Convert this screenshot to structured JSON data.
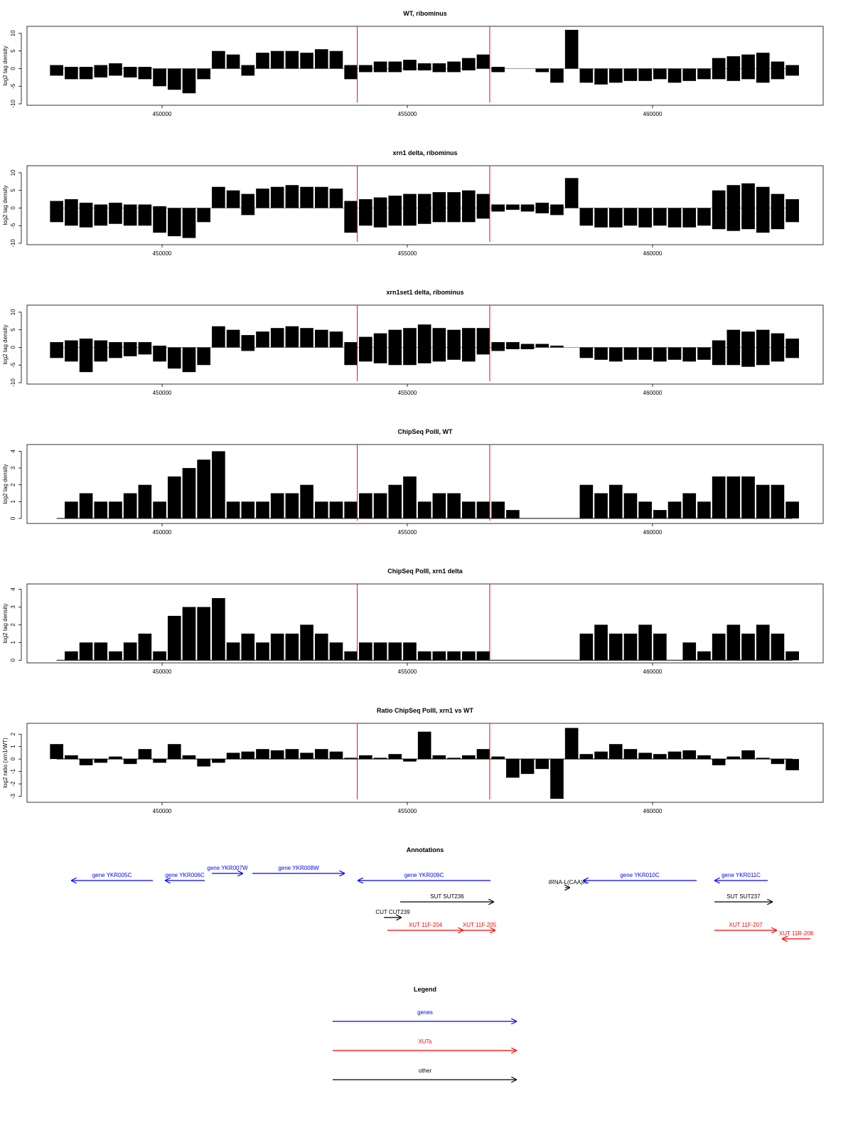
{
  "chart_data": [
    {
      "type": "bar",
      "title": "WT, ribominus",
      "ylabel": "log2 tag density",
      "xlim": [
        447246,
        463478
      ],
      "ylim": [
        -10.4,
        12
      ],
      "xticks": [
        450000,
        455000,
        460000
      ],
      "yticks": [
        -10,
        -5,
        0,
        5,
        10
      ],
      "vlines": [
        453980,
        456680
      ],
      "vline_color": "#ff0000",
      "x": [
        447850,
        448150,
        448450,
        448750,
        449050,
        449350,
        449650,
        449950,
        450250,
        450550,
        450850,
        451150,
        451450,
        451750,
        452050,
        452350,
        452650,
        452950,
        453250,
        453550,
        453850,
        454150,
        454450,
        454750,
        455050,
        455350,
        455650,
        455950,
        456250,
        456550,
        456850,
        457150,
        457450,
        457750,
        458050,
        458350,
        458650,
        458950,
        459250,
        459550,
        459850,
        460150,
        460450,
        460750,
        461050,
        461350,
        461650,
        461950,
        462250,
        462550,
        462850
      ],
      "series": [
        {
          "color": "#000000",
          "values": [
            1,
            0.5,
            0.5,
            1,
            1.5,
            0.5,
            0.5,
            0,
            0,
            0,
            0,
            5,
            4,
            1,
            4.5,
            5,
            5,
            4.5,
            5.5,
            5,
            1,
            1,
            2,
            2,
            2.5,
            1.5,
            1.5,
            2,
            3,
            4,
            0.5,
            0,
            0,
            0,
            0,
            11,
            0,
            0,
            0,
            0,
            0,
            0,
            0,
            0,
            0,
            3,
            3.5,
            4,
            4.5,
            2,
            1
          ]
        },
        {
          "color": "#000000",
          "values": [
            -2,
            -3,
            -3,
            -2.5,
            -2,
            -2.5,
            -3,
            -5,
            -6,
            -7,
            -3,
            0,
            0,
            -2,
            0,
            0,
            0,
            0,
            0,
            0,
            -3,
            -1,
            -1,
            -1,
            -0.5,
            -0.5,
            -1,
            -1,
            -0.5,
            0,
            -1,
            0,
            0,
            -1,
            -4,
            0,
            -4,
            -4.5,
            -4,
            -3.5,
            -3.5,
            -3,
            -4,
            -3.5,
            -3,
            -3,
            -3.5,
            -3,
            -4,
            -3,
            -2
          ]
        }
      ]
    },
    {
      "type": "bar",
      "title": "xrn1 delta, ribominus",
      "ylabel": "log2 tag density",
      "xlim": [
        447246,
        463478
      ],
      "ylim": [
        -10.4,
        12
      ],
      "xticks": [
        450000,
        455000,
        460000
      ],
      "yticks": [
        -10,
        -5,
        0,
        5,
        10
      ],
      "vlines": [
        453980,
        456680
      ],
      "vline_color": "#ff0000",
      "x": [
        447850,
        448150,
        448450,
        448750,
        449050,
        449350,
        449650,
        449950,
        450250,
        450550,
        450850,
        451150,
        451450,
        451750,
        452050,
        452350,
        452650,
        452950,
        453250,
        453550,
        453850,
        454150,
        454450,
        454750,
        455050,
        455350,
        455650,
        455950,
        456250,
        456550,
        456850,
        457150,
        457450,
        457750,
        458050,
        458350,
        458650,
        458950,
        459250,
        459550,
        459850,
        460150,
        460450,
        460750,
        461050,
        461350,
        461650,
        461950,
        462250,
        462550,
        462850
      ],
      "series": [
        {
          "color": "#000000",
          "values": [
            2,
            2.5,
            1.5,
            1,
            1.5,
            1,
            1,
            0.5,
            0,
            0,
            0,
            6,
            5,
            4,
            5.5,
            6,
            6.5,
            6,
            6,
            5.5,
            2,
            2.5,
            3,
            3.5,
            4,
            4,
            4.5,
            4.5,
            5,
            4,
            1,
            1,
            1,
            1.5,
            1,
            8.5,
            0,
            0,
            0,
            0,
            0,
            0,
            0,
            0,
            0,
            5,
            6.5,
            7,
            6,
            4,
            2.5
          ]
        },
        {
          "color": "#000000",
          "values": [
            -4,
            -5,
            -5.5,
            -5,
            -4.5,
            -5,
            -5,
            -7,
            -8,
            -8.5,
            -4,
            0,
            0,
            -2,
            0,
            0,
            0,
            0,
            0,
            0,
            -7,
            -5,
            -5.5,
            -5,
            -5,
            -4.5,
            -4,
            -4,
            -4,
            -3,
            -1,
            -0.5,
            -1,
            -1.5,
            -2,
            0,
            -5,
            -5.5,
            -5.5,
            -5,
            -5.5,
            -5,
            -5.5,
            -5.5,
            -5,
            -6,
            -6.5,
            -6,
            -7,
            -6,
            -4
          ]
        }
      ]
    },
    {
      "type": "bar",
      "title": "xrn1set1 delta, ribominus",
      "ylabel": "log2 tag density",
      "xlim": [
        447246,
        463478
      ],
      "ylim": [
        -10.4,
        12
      ],
      "xticks": [
        450000,
        455000,
        460000
      ],
      "yticks": [
        -10,
        -5,
        0,
        5,
        10
      ],
      "vlines": [
        453980,
        456680
      ],
      "vline_color": "#ff0000",
      "x": [
        447850,
        448150,
        448450,
        448750,
        449050,
        449350,
        449650,
        449950,
        450250,
        450550,
        450850,
        451150,
        451450,
        451750,
        452050,
        452350,
        452650,
        452950,
        453250,
        453550,
        453850,
        454150,
        454450,
        454750,
        455050,
        455350,
        455650,
        455950,
        456250,
        456550,
        456850,
        457150,
        457450,
        457750,
        458050,
        458350,
        458650,
        458950,
        459250,
        459550,
        459850,
        460150,
        460450,
        460750,
        461050,
        461350,
        461650,
        461950,
        462250,
        462550,
        462850
      ],
      "series": [
        {
          "color": "#000000",
          "values": [
            1.5,
            2,
            2.5,
            2,
            1.5,
            1.5,
            1.5,
            0.5,
            0,
            0,
            0,
            6,
            5,
            3.5,
            4.5,
            5.5,
            6,
            5.5,
            5,
            4.5,
            1.5,
            3,
            4,
            5,
            5.5,
            6.5,
            5.5,
            5,
            5.5,
            5.5,
            1.5,
            1.5,
            1,
            1,
            0.5,
            0,
            0,
            0,
            0,
            0,
            0,
            0,
            0,
            0,
            0,
            2,
            5,
            4.5,
            5,
            4,
            2.5
          ]
        },
        {
          "color": "#000000",
          "values": [
            -3,
            -4,
            -7,
            -4,
            -3,
            -2.5,
            -2,
            -4,
            -6,
            -7,
            -5,
            0,
            0,
            -1,
            0,
            0,
            0,
            0,
            0,
            0,
            -5,
            -4,
            -4.5,
            -5,
            -5,
            -4.5,
            -4,
            -3.5,
            -4,
            -2,
            -1,
            -0.5,
            -0.5,
            0,
            0,
            0,
            -3,
            -3.5,
            -4,
            -3.5,
            -3.5,
            -4,
            -3.5,
            -4,
            -3.5,
            -5,
            -5,
            -5.5,
            -5,
            -4,
            -3
          ]
        }
      ]
    },
    {
      "type": "bar",
      "title": "ChipSeq PolII, WT",
      "ylabel": "log2 tag density",
      "xlim": [
        447246,
        463478
      ],
      "ylim": [
        -0.3,
        4.4
      ],
      "xticks": [
        450000,
        455000,
        460000
      ],
      "yticks": [
        0,
        1,
        2,
        3,
        4
      ],
      "vlines": [
        453980,
        456680
      ],
      "vline_color": "#ff0000",
      "x": [
        447850,
        448150,
        448450,
        448750,
        449050,
        449350,
        449650,
        449950,
        450250,
        450550,
        450850,
        451150,
        451450,
        451750,
        452050,
        452350,
        452650,
        452950,
        453250,
        453550,
        453850,
        454150,
        454450,
        454750,
        455050,
        455350,
        455650,
        455950,
        456250,
        456550,
        456850,
        457150,
        457450,
        457750,
        458050,
        458350,
        458650,
        458950,
        459250,
        459550,
        459850,
        460150,
        460450,
        460750,
        461050,
        461350,
        461650,
        461950,
        462250,
        462550,
        462850
      ],
      "series": [
        {
          "color": "#000000",
          "values": [
            0,
            1,
            1.5,
            1,
            1,
            1.5,
            2,
            1,
            2.5,
            3,
            3.5,
            4,
            1,
            1,
            1,
            1.5,
            1.5,
            2,
            1,
            1,
            1,
            1.5,
            1.5,
            2,
            2.5,
            1,
            1.5,
            1.5,
            1,
            1,
            1,
            0.5,
            0,
            0,
            0,
            0,
            2,
            1.5,
            2,
            1.5,
            1,
            0.5,
            1,
            1.5,
            1,
            2.5,
            2.5,
            2.5,
            2,
            2,
            1
          ]
        }
      ]
    },
    {
      "type": "bar",
      "title": "ChipSeq PolII, xrn1 delta",
      "ylabel": "log2 tag density",
      "xlim": [
        447246,
        463478
      ],
      "ylim": [
        -0.15,
        4.3
      ],
      "xticks": [
        450000,
        455000,
        460000
      ],
      "yticks": [
        0,
        1,
        2,
        3,
        4
      ],
      "vlines": [
        453980,
        456680
      ],
      "vline_color": "#ff0000",
      "x": [
        447850,
        448150,
        448450,
        448750,
        449050,
        449350,
        449650,
        449950,
        450250,
        450550,
        450850,
        451150,
        451450,
        451750,
        452050,
        452350,
        452650,
        452950,
        453250,
        453550,
        453850,
        454150,
        454450,
        454750,
        455050,
        455350,
        455650,
        455950,
        456250,
        456550,
        456850,
        457150,
        457450,
        457750,
        458050,
        458350,
        458650,
        458950,
        459250,
        459550,
        459850,
        460150,
        460450,
        460750,
        461050,
        461350,
        461650,
        461950,
        462250,
        462550,
        462850
      ],
      "series": [
        {
          "color": "#000000",
          "values": [
            0,
            0.5,
            1,
            1,
            0.5,
            1,
            1.5,
            0.5,
            2.5,
            3,
            3,
            3.5,
            1,
            1.5,
            1,
            1.5,
            1.5,
            2,
            1.5,
            1,
            0.5,
            1,
            1,
            1,
            1,
            0.5,
            0.5,
            0.5,
            0.5,
            0.5,
            0,
            0,
            0,
            0,
            0,
            0,
            1.5,
            2,
            1.5,
            1.5,
            2,
            1.5,
            0,
            1,
            0.5,
            1.5,
            2,
            1.5,
            2,
            1.5,
            0.5
          ]
        }
      ]
    },
    {
      "type": "bar",
      "title": "Ratio ChipSeq PolII, xrn1 vs WT",
      "ylabel": "log2 ratio (xrn1/WT)",
      "xlim": [
        447246,
        463478
      ],
      "ylim": [
        -3.48,
        2.87
      ],
      "xticks": [
        450000,
        455000,
        460000
      ],
      "yticks": [
        -3,
        -2,
        -1,
        0,
        1,
        2
      ],
      "vlines": [
        453980,
        456680
      ],
      "vline_color": "#ff0000",
      "x": [
        447850,
        448150,
        448450,
        448750,
        449050,
        449350,
        449650,
        449950,
        450250,
        450550,
        450850,
        451150,
        451450,
        451750,
        452050,
        452350,
        452650,
        452950,
        453250,
        453550,
        453850,
        454150,
        454450,
        454750,
        455050,
        455350,
        455650,
        455950,
        456250,
        456550,
        456850,
        457150,
        457450,
        457750,
        458050,
        458350,
        458650,
        458950,
        459250,
        459550,
        459850,
        460150,
        460450,
        460750,
        461050,
        461350,
        461650,
        461950,
        462250,
        462550,
        462850
      ],
      "series": [
        {
          "color": "#000000",
          "values": [
            1.2,
            0.3,
            -0.5,
            -0.3,
            0.2,
            -0.4,
            0.8,
            -0.3,
            1.2,
            0.3,
            -0.6,
            -0.3,
            0.5,
            0.6,
            0.8,
            0.7,
            0.8,
            0.5,
            0.8,
            0.6,
            0.1,
            0.3,
            0.1,
            0.4,
            -0.2,
            2.2,
            0.3,
            0.1,
            0.3,
            0.8,
            0.2,
            -1.5,
            -1.2,
            -0.8,
            -3.2,
            2.5,
            0.4,
            0.6,
            1.2,
            0.8,
            0.5,
            0.4,
            0.6,
            0.7,
            0.3,
            -0.5,
            0.2,
            0.7,
            0.1,
            -0.4,
            -0.9
          ]
        }
      ]
    },
    {
      "type": "annotation",
      "title": "Annotations",
      "xlim": [
        447246,
        463478
      ],
      "features": [
        {
          "label": "gene YKR005C",
          "kind": "gene",
          "strand": "-",
          "start": 448145,
          "end": 449812,
          "color": "#0000ff"
        },
        {
          "label": "gene YKR006C",
          "kind": "gene",
          "strand": "-",
          "start": 450058,
          "end": 450870,
          "color": "#0000ff"
        },
        {
          "label": "gene YKR007W",
          "kind": "gene",
          "strand": "+",
          "start": 451014,
          "end": 451652,
          "color": "#0000ff"
        },
        {
          "label": "gene YKR008W",
          "kind": "gene",
          "strand": "+",
          "start": 451841,
          "end": 453725,
          "color": "#0000ff"
        },
        {
          "label": "gene YKR009C",
          "kind": "gene",
          "strand": "-",
          "start": 453986,
          "end": 456696,
          "color": "#0000ff"
        },
        {
          "label": "tRNA-L(CAA)K",
          "kind": "tRNA",
          "strand": "+",
          "start": 458217,
          "end": 458319,
          "color": "#000000"
        },
        {
          "label": "gene YKR010C",
          "kind": "gene",
          "strand": "-",
          "start": 458580,
          "end": 460899,
          "color": "#0000ff"
        },
        {
          "label": "gene YKR011C",
          "kind": "gene",
          "strand": "-",
          "start": 461261,
          "end": 462348,
          "color": "#0000ff"
        },
        {
          "label": "SUT SUT236",
          "kind": "SUT",
          "strand": "+",
          "start": 454855,
          "end": 456768,
          "color": "#000000"
        },
        {
          "label": "SUT SUT237",
          "kind": "SUT",
          "strand": "+",
          "start": 461261,
          "end": 462449,
          "color": "#000000"
        },
        {
          "label": "CUT CUT239",
          "kind": "CUT",
          "strand": "+",
          "start": 454522,
          "end": 454884,
          "color": "#000000"
        },
        {
          "label": "XUT 11F-204",
          "kind": "XUT",
          "strand": "+",
          "start": 454594,
          "end": 456145,
          "color": "#ff0000"
        },
        {
          "label": "XUT 11F-205",
          "kind": "XUT",
          "strand": "+",
          "start": 456145,
          "end": 456797,
          "color": "#ff0000"
        },
        {
          "label": "XUT 11F-207",
          "kind": "XUT",
          "strand": "+",
          "start": 461261,
          "end": 462536,
          "color": "#ff0000"
        },
        {
          "label": "XUT 11R-208",
          "kind": "XUT",
          "strand": "-",
          "start": 462638,
          "end": 463217,
          "color": "#ff0000"
        }
      ]
    }
  ],
  "legend": {
    "title": "Legend",
    "entries": [
      {
        "label": "genes",
        "color": "#0000ff"
      },
      {
        "label": "XUTs",
        "color": "#ff0000"
      },
      {
        "label": "other",
        "color": "#000000"
      }
    ]
  }
}
